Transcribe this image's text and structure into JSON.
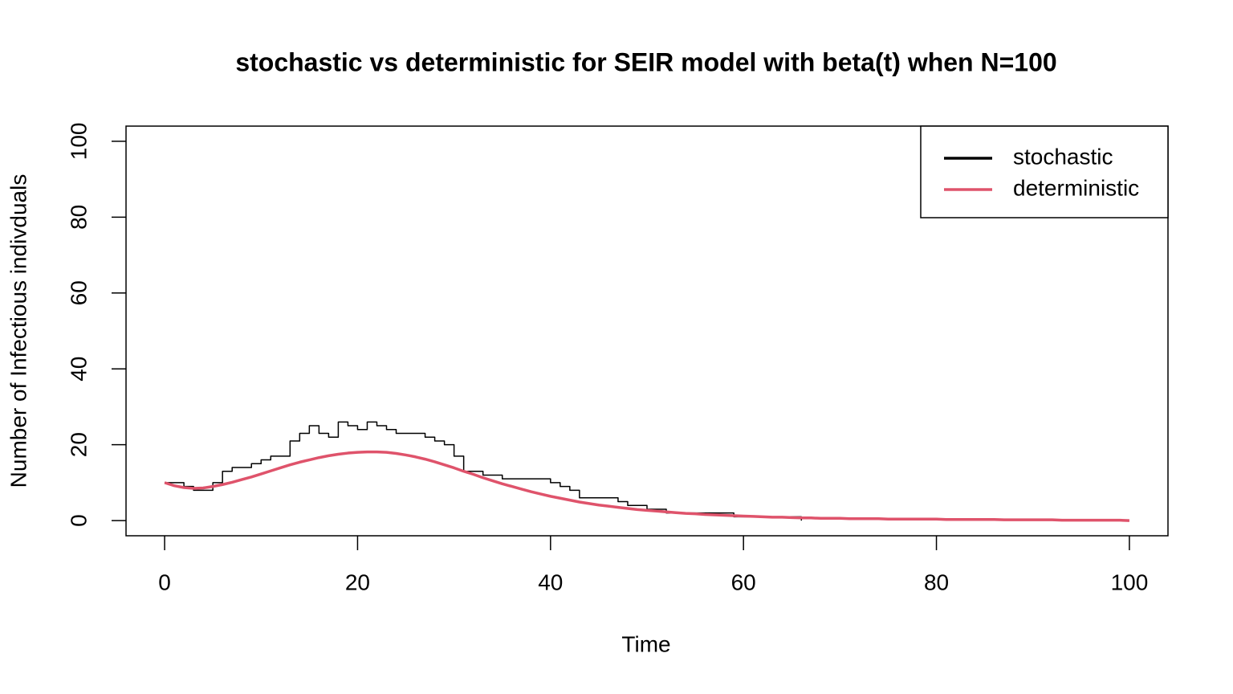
{
  "chart_data": {
    "type": "line",
    "title": "stochastic vs deterministic for SEIR model with beta(t) when N=100",
    "x_label": "Time",
    "y_label": "Number of Infectious indivduals",
    "x": [
      0,
      1,
      2,
      3,
      4,
      5,
      6,
      7,
      8,
      9,
      10,
      11,
      12,
      13,
      14,
      15,
      16,
      17,
      18,
      19,
      20,
      21,
      22,
      23,
      24,
      25,
      26,
      27,
      28,
      29,
      30,
      31,
      32,
      33,
      34,
      35,
      36,
      37,
      38,
      39,
      40,
      41,
      42,
      43,
      44,
      45,
      46,
      47,
      48,
      49,
      50,
      51,
      52,
      53,
      54,
      55,
      56,
      57,
      58,
      59,
      60,
      61,
      62,
      63,
      64,
      65,
      66,
      67,
      68,
      69,
      70,
      71,
      72,
      73,
      74,
      75,
      76,
      77,
      78,
      79,
      80,
      81,
      82,
      83,
      84,
      85,
      86,
      87,
      88,
      89,
      90,
      91,
      92,
      93,
      94,
      95,
      96,
      97,
      98,
      99,
      100
    ],
    "series": [
      {
        "name": "stochastic",
        "color": "#000000",
        "step": true,
        "width": 1.5,
        "values": [
          10,
          10,
          9,
          8,
          8,
          10,
          13,
          14,
          14,
          15,
          16,
          17,
          17,
          21,
          23,
          25,
          23,
          22,
          26,
          25,
          24,
          26,
          25,
          24,
          23,
          23,
          23,
          22,
          21,
          20,
          17,
          13,
          13,
          12,
          12,
          11,
          11,
          11,
          11,
          11,
          10,
          9,
          8,
          6,
          6,
          6,
          6,
          5,
          4,
          4,
          3,
          3,
          2,
          2,
          2,
          2,
          2,
          2,
          2,
          1,
          1,
          1,
          1,
          1,
          1,
          1,
          0,
          null,
          null,
          null,
          null,
          null,
          null,
          null,
          null,
          null,
          null,
          null,
          null,
          null,
          null,
          null,
          null,
          null,
          null,
          null,
          null,
          null,
          null,
          null,
          null,
          null,
          null,
          null,
          null,
          null,
          null,
          null,
          null,
          null,
          null
        ]
      },
      {
        "name": "deterministic",
        "color": "#DF536B",
        "step": false,
        "width": 3.5,
        "values": [
          10,
          9.2,
          8.7,
          8.5,
          8.6,
          9.0,
          9.5,
          10.1,
          10.8,
          11.5,
          12.3,
          13.1,
          13.9,
          14.7,
          15.4,
          16.0,
          16.6,
          17.1,
          17.5,
          17.8,
          18.0,
          18.1,
          18.1,
          18.0,
          17.7,
          17.3,
          16.8,
          16.2,
          15.5,
          14.7,
          13.9,
          13.0,
          12.2,
          11.3,
          10.5,
          9.7,
          9.0,
          8.3,
          7.6,
          7.0,
          6.4,
          5.9,
          5.4,
          4.9,
          4.5,
          4.1,
          3.8,
          3.5,
          3.2,
          2.9,
          2.7,
          2.5,
          2.3,
          2.1,
          1.9,
          1.8,
          1.6,
          1.5,
          1.4,
          1.3,
          1.2,
          1.1,
          1.0,
          0.9,
          0.9,
          0.8,
          0.7,
          0.7,
          0.6,
          0.6,
          0.6,
          0.5,
          0.5,
          0.5,
          0.5,
          0.4,
          0.4,
          0.4,
          0.4,
          0.4,
          0.4,
          0.3,
          0.3,
          0.3,
          0.3,
          0.3,
          0.3,
          0.2,
          0.2,
          0.2,
          0.2,
          0.2,
          0.2,
          0.1,
          0.1,
          0.1,
          0.1,
          0.1,
          0.1,
          0.1,
          0.0
        ]
      }
    ],
    "xlim": [
      -4,
      104
    ],
    "ylim": [
      -4,
      104
    ],
    "xticks": [
      0,
      20,
      40,
      60,
      80,
      100
    ],
    "yticks": [
      0,
      20,
      40,
      60,
      80,
      100
    ],
    "legend": "top-right"
  }
}
